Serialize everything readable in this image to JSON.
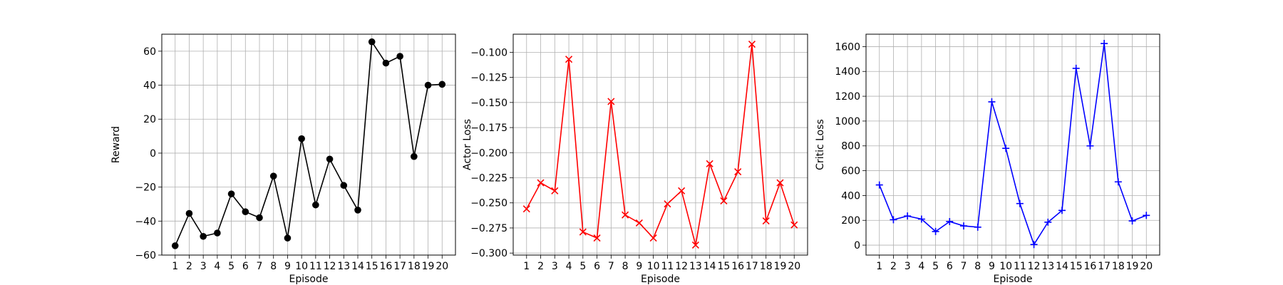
{
  "chart_data": [
    {
      "type": "line",
      "title": "",
      "xlabel": "Episode",
      "ylabel": "Reward",
      "x": [
        1,
        2,
        3,
        4,
        5,
        6,
        7,
        8,
        9,
        10,
        11,
        12,
        13,
        14,
        15,
        16,
        17,
        18,
        19,
        20
      ],
      "series": [
        {
          "color": "#000000",
          "marker": "circle",
          "values": [
            -54.5,
            -35.5,
            -49,
            -47,
            -24,
            -34.5,
            -38,
            -13.5,
            -50,
            8.5,
            -30.5,
            -3.5,
            -19,
            -33.5,
            65.5,
            53,
            57,
            -2,
            40,
            40.5
          ]
        }
      ],
      "ylim": [
        -60,
        70
      ],
      "yticks": [
        -60,
        -40,
        -20,
        0,
        20,
        40,
        60
      ],
      "ytick_labels": [
        "−60",
        "−40",
        "−20",
        "0",
        "20",
        "40",
        "60"
      ],
      "grid": true
    },
    {
      "type": "line",
      "title": "",
      "xlabel": "Episode",
      "ylabel": "Actor Loss",
      "x": [
        1,
        2,
        3,
        4,
        5,
        6,
        7,
        8,
        9,
        10,
        11,
        12,
        13,
        14,
        15,
        16,
        17,
        18,
        19,
        20
      ],
      "series": [
        {
          "color": "#ff0000",
          "marker": "x",
          "values": [
            -0.256,
            -0.23,
            -0.238,
            -0.107,
            -0.279,
            -0.285,
            -0.149,
            -0.262,
            -0.27,
            -0.285,
            -0.251,
            -0.238,
            -0.292,
            -0.211,
            -0.248,
            -0.219,
            -0.092,
            -0.268,
            -0.23,
            -0.272
          ]
        }
      ],
      "ylim": [
        -0.302,
        -0.082
      ],
      "yticks": [
        -0.3,
        -0.275,
        -0.25,
        -0.225,
        -0.2,
        -0.175,
        -0.15,
        -0.125,
        -0.1
      ],
      "ytick_labels": [
        "−0.300",
        "−0.275",
        "−0.250",
        "−0.225",
        "−0.200",
        "−0.175",
        "−0.150",
        "−0.125",
        "−0.100"
      ],
      "grid": true
    },
    {
      "type": "line",
      "title": "",
      "xlabel": "Episode",
      "ylabel": "Critic Loss",
      "x": [
        1,
        2,
        3,
        4,
        5,
        6,
        7,
        8,
        9,
        10,
        11,
        12,
        13,
        14,
        15,
        16,
        17,
        18,
        19,
        20
      ],
      "series": [
        {
          "color": "#0000ff",
          "marker": "plus",
          "values": [
            485,
            205,
            235,
            210,
            110,
            190,
            155,
            145,
            1155,
            780,
            335,
            5,
            185,
            280,
            1425,
            800,
            1625,
            510,
            195,
            240
          ]
        }
      ],
      "ylim": [
        -80,
        1700
      ],
      "yticks": [
        0,
        200,
        400,
        600,
        800,
        1000,
        1200,
        1400,
        1600
      ],
      "ytick_labels": [
        "0",
        "200",
        "400",
        "600",
        "800",
        "1000",
        "1200",
        "1400",
        "1600"
      ],
      "grid": true
    }
  ]
}
